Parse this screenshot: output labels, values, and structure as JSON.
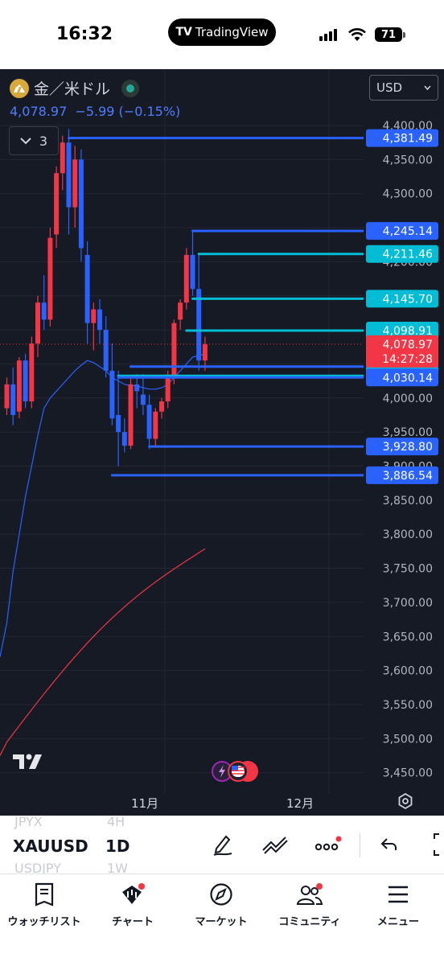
{
  "status_bar": {
    "time": "16:32",
    "brand": "TradingView",
    "battery": "71"
  },
  "header": {
    "symbol_name": "金／米ドル",
    "price": "4,078.97",
    "change": "−5.99 (−0.15%)",
    "indicator_count": "3",
    "currency": "USD"
  },
  "colors": {
    "up": "#f23645",
    "down": "#2962ff",
    "bg": "#161a25",
    "cyan": "#00bcd4",
    "ma_blue": "#2962ff",
    "ma_red": "#f23645"
  },
  "chart_data": {
    "type": "candlestick",
    "ylim": [
      3420,
      4435
    ],
    "y_ticks": [
      "4,400.00",
      "4,350.00",
      "4,300.00",
      "4,250.00",
      "4,200.00",
      "4,150.00",
      "4,100.00",
      "4,050.00",
      "4,000.00",
      "3,950.00",
      "3,900.00",
      "3,850.00",
      "3,800.00",
      "3,750.00",
      "3,700.00",
      "3,650.00",
      "3,600.00",
      "3,550.00",
      "3,500.00",
      "3,450.00"
    ],
    "x_labels": [
      {
        "text": "11月",
        "idx": 25.5
      },
      {
        "text": "12月",
        "idx": 52
      }
    ],
    "candles": [
      [
        3985,
        4030,
        3975,
        4020
      ],
      [
        4020,
        4045,
        3960,
        3975
      ],
      [
        3980,
        4060,
        3970,
        4055
      ],
      [
        4055,
        4065,
        3985,
        3995
      ],
      [
        3995,
        4090,
        3985,
        4080
      ],
      [
        4080,
        4150,
        4060,
        4140
      ],
      [
        4140,
        4180,
        4100,
        4115
      ],
      [
        4115,
        4250,
        4105,
        4235
      ],
      [
        4240,
        4340,
        4220,
        4330
      ],
      [
        4330,
        4385,
        4305,
        4375
      ],
      [
        4375,
        4395,
        4240,
        4280
      ],
      [
        4280,
        4370,
        4250,
        4350
      ],
      [
        4350,
        4365,
        4200,
        4220
      ],
      [
        4210,
        4230,
        4080,
        4110
      ],
      [
        4110,
        4140,
        4070,
        4130
      ],
      [
        4130,
        4145,
        4080,
        4100
      ],
      [
        4100,
        4120,
        4030,
        4040
      ],
      [
        4040,
        4080,
        3960,
        3970
      ],
      [
        3975,
        4040,
        3900,
        3950
      ],
      [
        3950,
        3970,
        3920,
        3930
      ],
      [
        3930,
        4030,
        3925,
        4020
      ],
      [
        4020,
        4035,
        3985,
        4010
      ],
      [
        4005,
        4035,
        3975,
        3990
      ],
      [
        3990,
        4005,
        3925,
        3940
      ],
      [
        3940,
        3985,
        3930,
        3980
      ],
      [
        3980,
        4000,
        3970,
        3995
      ],
      [
        3995,
        4040,
        3985,
        4030
      ],
      [
        4030,
        4115,
        4020,
        4110
      ],
      [
        4115,
        4145,
        4100,
        4140
      ],
      [
        4140,
        4220,
        4130,
        4210
      ],
      [
        4210,
        4245,
        4150,
        4160
      ],
      [
        4160,
        4210,
        4040,
        4055
      ],
      [
        4055,
        4090,
        4040,
        4079
      ]
    ],
    "ma_fast": [
      3670,
      3745,
      3800,
      3855,
      3900,
      3945,
      3985,
      4000,
      4010,
      4020,
      4030,
      4040,
      4048,
      4055,
      4052,
      4046,
      4040,
      4030,
      4025,
      4020,
      4018,
      4018,
      4015,
      4013,
      4013,
      4015,
      4020,
      4030,
      4040,
      4050,
      4060,
      4062,
      4065
    ],
    "ma_slow_range": {
      "from_idx": 0,
      "to_idx": 32,
      "from": 3495,
      "to": 3810
    },
    "levels": [
      {
        "value": 4381.49,
        "label": "4,381.49",
        "color": "#2962ff",
        "start_idx": 10
      },
      {
        "value": 4245.14,
        "label": "4,245.14",
        "color": "#2962ff",
        "start_idx": 30
      },
      {
        "value": 4211.46,
        "label": "4,211.46",
        "color": "#00bcd4",
        "start_idx": 31
      },
      {
        "value": 4145.7,
        "label": "4,145.70",
        "color": "#00bcd4",
        "start_idx": 30
      },
      {
        "value": 4098.91,
        "label": "4,098.91",
        "color": "#00bcd4",
        "start_idx": 29
      },
      {
        "value": 4046.16,
        "label": "4,046.16",
        "color": "#2962ff",
        "start_idx": 20
      },
      {
        "value": 4032.5,
        "label": "4,032.50",
        "color": "#00bcd4",
        "start_idx": 18
      },
      {
        "value": 4030.14,
        "label": "4,030.14",
        "color": "#2962ff",
        "start_idx": 18
      },
      {
        "value": 3928.8,
        "label": "3,928.80",
        "color": "#2962ff",
        "start_idx": 23
      },
      {
        "value": 3886.54,
        "label": "3,886.54",
        "color": "#2962ff",
        "start_idx": 17
      }
    ],
    "current_price": {
      "value": 4078.97,
      "label": "4,078.97",
      "countdown": "14:27:28",
      "color": "#f23645"
    }
  },
  "toolbar": {
    "symbol": "XAUUSD",
    "timeframe": "1D",
    "ghost_symbol_above": "JPYX",
    "ghost_symbol_below": "USDJPY",
    "ghost_tf_above": "4H",
    "ghost_tf_below": "1W"
  },
  "tabs": [
    {
      "label": "ウォッチリスト",
      "icon": "watchlist-icon"
    },
    {
      "label": "チャート",
      "icon": "chart-icon"
    },
    {
      "label": "マーケット",
      "icon": "compass-icon"
    },
    {
      "label": "コミュニティ",
      "icon": "community-icon"
    },
    {
      "label": "メニュー",
      "icon": "menu-icon"
    }
  ]
}
